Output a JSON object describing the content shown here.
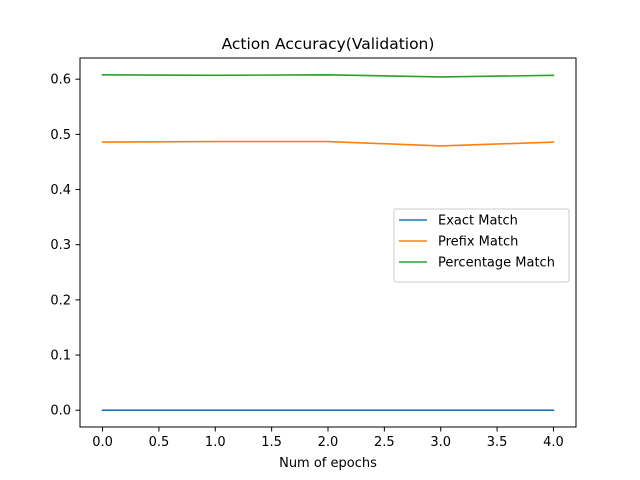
{
  "chart_data": {
    "type": "line",
    "title": "Action Accuracy(Validation)",
    "xlabel": "Num of epochs",
    "ylabel": "",
    "x": [
      0,
      1,
      2,
      3,
      4
    ],
    "xlim": [
      -0.2,
      4.2
    ],
    "ylim": [
      -0.0304,
      0.6384
    ],
    "x_ticks": [
      0.0,
      0.5,
      1.0,
      1.5,
      2.0,
      2.5,
      3.0,
      3.5,
      4.0
    ],
    "x_tick_labels": [
      "0.0",
      "0.5",
      "1.0",
      "1.5",
      "2.0",
      "2.5",
      "3.0",
      "3.5",
      "4.0"
    ],
    "y_ticks": [
      0.0,
      0.1,
      0.2,
      0.3,
      0.4,
      0.5,
      0.6
    ],
    "y_tick_labels": [
      "0.0",
      "0.1",
      "0.2",
      "0.3",
      "0.4",
      "0.5",
      "0.6"
    ],
    "grid": false,
    "legend_position": "center-right",
    "series": [
      {
        "name": "Exact Match",
        "color": "#1f77b4",
        "values": [
          0.0,
          0.0,
          0.0,
          0.0,
          0.0
        ]
      },
      {
        "name": "Prefix Match",
        "color": "#ff7f0e",
        "values": [
          0.486,
          0.487,
          0.487,
          0.479,
          0.486
        ]
      },
      {
        "name": "Percentage Match",
        "color": "#2ca02c",
        "values": [
          0.608,
          0.607,
          0.608,
          0.604,
          0.607
        ]
      }
    ]
  }
}
